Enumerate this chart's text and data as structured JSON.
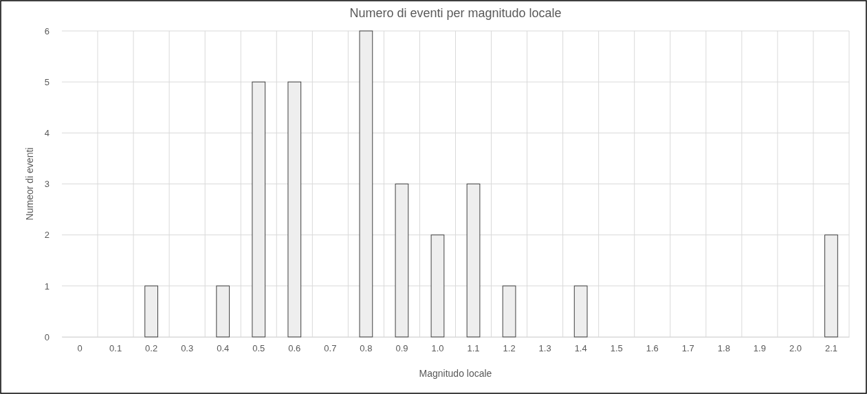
{
  "chart_data": {
    "type": "bar",
    "title": "Numero di eventi per magnitudo locale",
    "xlabel": "Magnitudo locale",
    "ylabel": "Numeor di eventi",
    "categories": [
      "0",
      "0.1",
      "0.2",
      "0.3",
      "0.4",
      "0.5",
      "0.6",
      "0.7",
      "0.8",
      "0.9",
      "1.0",
      "1.1",
      "1.2",
      "1.3",
      "1.4",
      "1.5",
      "1.6",
      "1.7",
      "1.8",
      "1.9",
      "2.0",
      "2.1"
    ],
    "values": [
      0,
      0,
      1,
      0,
      1,
      5,
      5,
      0,
      6,
      3,
      2,
      3,
      1,
      0,
      1,
      0,
      0,
      0,
      0,
      0,
      0,
      2
    ],
    "color": "#eeeeee",
    "ylim": [
      0,
      6
    ],
    "yticks": [
      0,
      1,
      2,
      3,
      4,
      5,
      6
    ],
    "grid": true
  }
}
